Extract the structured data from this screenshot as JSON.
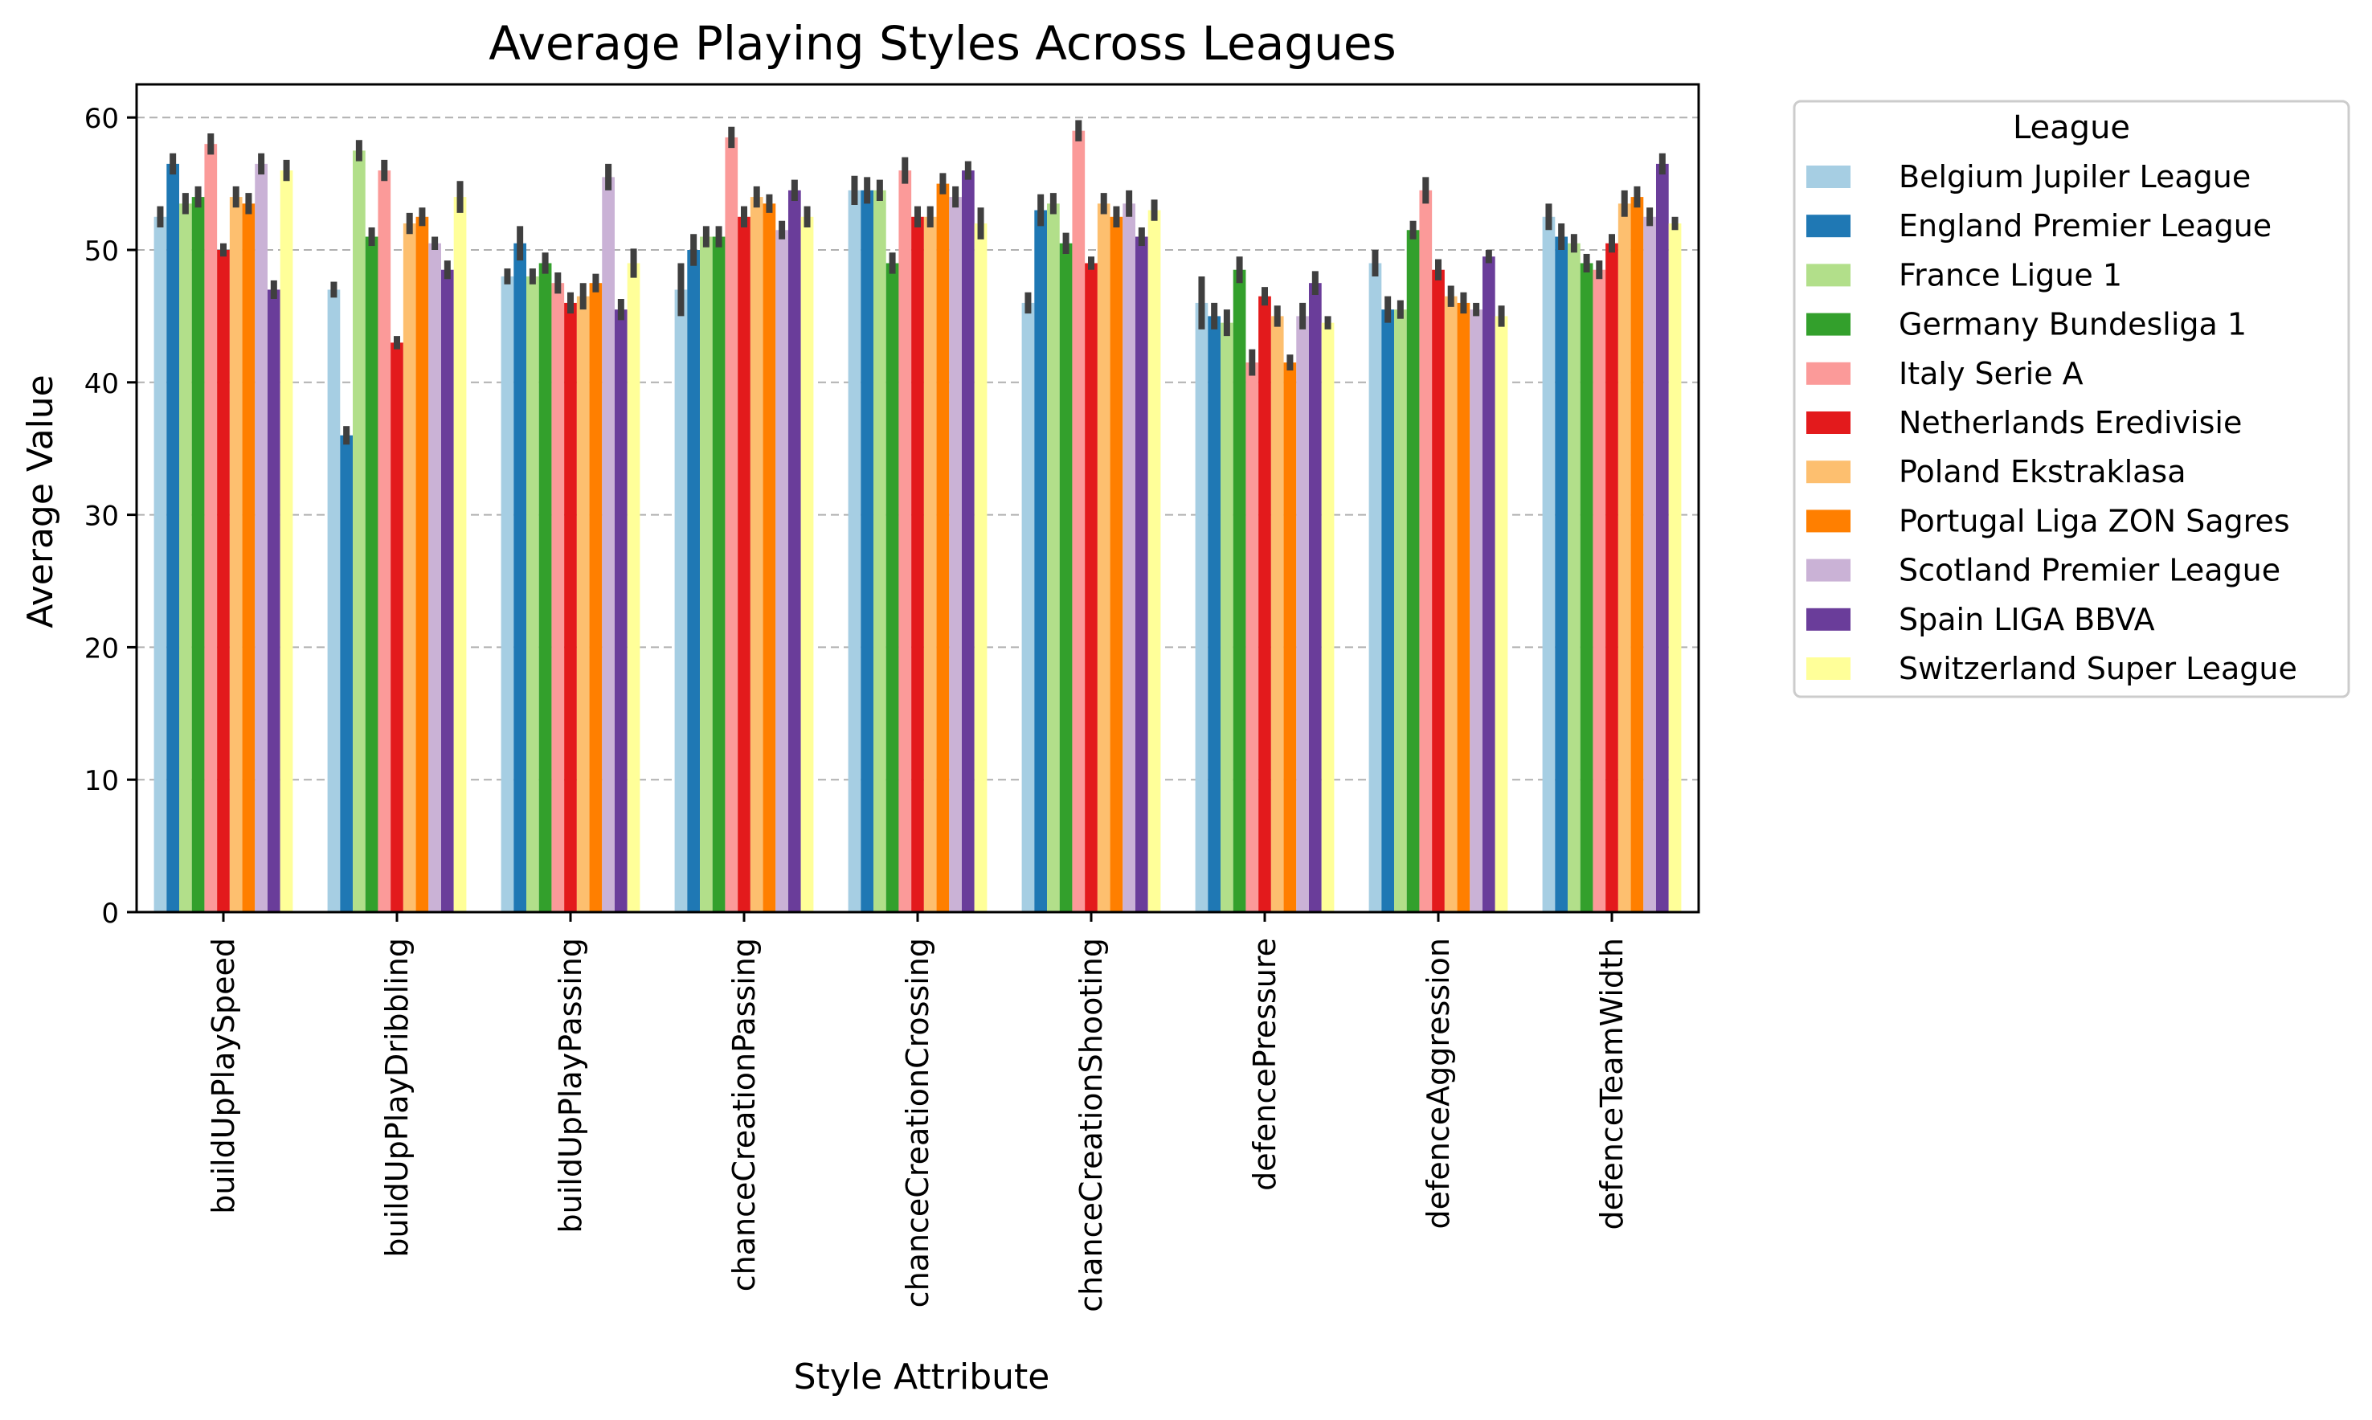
{
  "chart_data": {
    "type": "bar",
    "title": "Average Playing Styles Across Leagues",
    "xlabel": "Style Attribute",
    "ylabel": "Average Value",
    "ylim": [
      0,
      62.5
    ],
    "yticks": [
      0,
      10,
      20,
      30,
      40,
      50,
      60
    ],
    "grid": "y-dashed",
    "legend_title": "League",
    "legend_position": "outside-right",
    "categories": [
      "buildUpPlaySpeed",
      "buildUpPlayDribbling",
      "buildUpPlayPassing",
      "chanceCreationPassing",
      "chanceCreationCrossing",
      "chanceCreationShooting",
      "defencePressure",
      "defenceAggression",
      "defenceTeamWidth"
    ],
    "series": [
      {
        "name": "Belgium Jupiler League",
        "color": "#a6cee3",
        "values": [
          52.5,
          47.0,
          48.0,
          47.0,
          54.5,
          46.0,
          46.0,
          49.0,
          52.5
        ],
        "err": [
          0.8,
          0.6,
          0.6,
          2.0,
          1.1,
          0.8,
          2.0,
          1.0,
          1.0
        ]
      },
      {
        "name": "England Premier League",
        "color": "#1f78b4",
        "values": [
          56.5,
          36.0,
          50.5,
          50.0,
          54.5,
          53.0,
          45.0,
          45.5,
          51.0
        ],
        "err": [
          0.8,
          0.7,
          1.3,
          1.2,
          1.0,
          1.2,
          1.0,
          1.0,
          1.0
        ]
      },
      {
        "name": "France Ligue 1",
        "color": "#b2df8a",
        "values": [
          53.5,
          57.5,
          48.0,
          51.0,
          54.5,
          53.5,
          44.5,
          45.5,
          50.5
        ],
        "err": [
          0.8,
          0.8,
          0.6,
          0.8,
          0.8,
          0.8,
          1.0,
          0.7,
          0.7
        ]
      },
      {
        "name": "Germany Bundesliga 1",
        "color": "#33a02c",
        "values": [
          54.0,
          51.0,
          49.0,
          51.0,
          49.0,
          50.5,
          48.5,
          51.5,
          49.0
        ],
        "err": [
          0.8,
          0.7,
          0.8,
          0.8,
          0.8,
          0.8,
          1.0,
          0.7,
          0.7
        ]
      },
      {
        "name": "Italy Serie A",
        "color": "#fb9a99",
        "values": [
          58.0,
          56.0,
          47.5,
          58.5,
          56.0,
          59.0,
          41.5,
          54.5,
          48.5
        ],
        "err": [
          0.8,
          0.8,
          0.8,
          0.8,
          1.0,
          0.8,
          1.0,
          1.0,
          0.7
        ]
      },
      {
        "name": "Netherlands Eredivisie",
        "color": "#e31a1c",
        "values": [
          50.0,
          43.0,
          46.0,
          52.5,
          52.5,
          49.0,
          46.5,
          48.5,
          50.5
        ],
        "err": [
          0.5,
          0.5,
          0.8,
          0.8,
          0.8,
          0.5,
          0.7,
          0.8,
          0.7
        ]
      },
      {
        "name": "Poland Ekstraklasa",
        "color": "#fdbf6f",
        "values": [
          54.0,
          52.0,
          46.5,
          54.0,
          52.5,
          53.5,
          45.0,
          46.5,
          53.5
        ],
        "err": [
          0.8,
          0.8,
          1.0,
          0.8,
          0.8,
          0.8,
          0.8,
          0.8,
          1.0
        ]
      },
      {
        "name": "Portugal Liga ZON Sagres",
        "color": "#ff7f00",
        "values": [
          53.5,
          52.5,
          47.5,
          53.5,
          55.0,
          52.5,
          41.5,
          46.0,
          54.0
        ],
        "err": [
          0.8,
          0.7,
          0.7,
          0.7,
          0.8,
          0.8,
          0.6,
          0.8,
          0.8
        ]
      },
      {
        "name": "Scotland Premier League",
        "color": "#cab2d6",
        "values": [
          56.5,
          50.5,
          55.5,
          51.5,
          54.0,
          53.5,
          45.0,
          45.5,
          52.5
        ],
        "err": [
          0.8,
          0.5,
          1.0,
          0.7,
          0.8,
          1.0,
          1.0,
          0.5,
          0.7
        ]
      },
      {
        "name": "Spain LIGA BBVA",
        "color": "#6a3d9a",
        "values": [
          47.0,
          48.5,
          45.5,
          54.5,
          56.0,
          51.0,
          47.5,
          49.5,
          56.5
        ],
        "err": [
          0.7,
          0.7,
          0.8,
          0.8,
          0.7,
          0.7,
          0.9,
          0.5,
          0.8
        ]
      },
      {
        "name": "Switzerland Super League",
        "color": "#ffff99",
        "values": [
          56.0,
          54.0,
          49.0,
          52.5,
          52.0,
          53.0,
          44.5,
          45.0,
          52.0
        ],
        "err": [
          0.8,
          1.2,
          1.1,
          0.8,
          1.2,
          0.8,
          0.5,
          0.8,
          0.5
        ]
      }
    ]
  }
}
